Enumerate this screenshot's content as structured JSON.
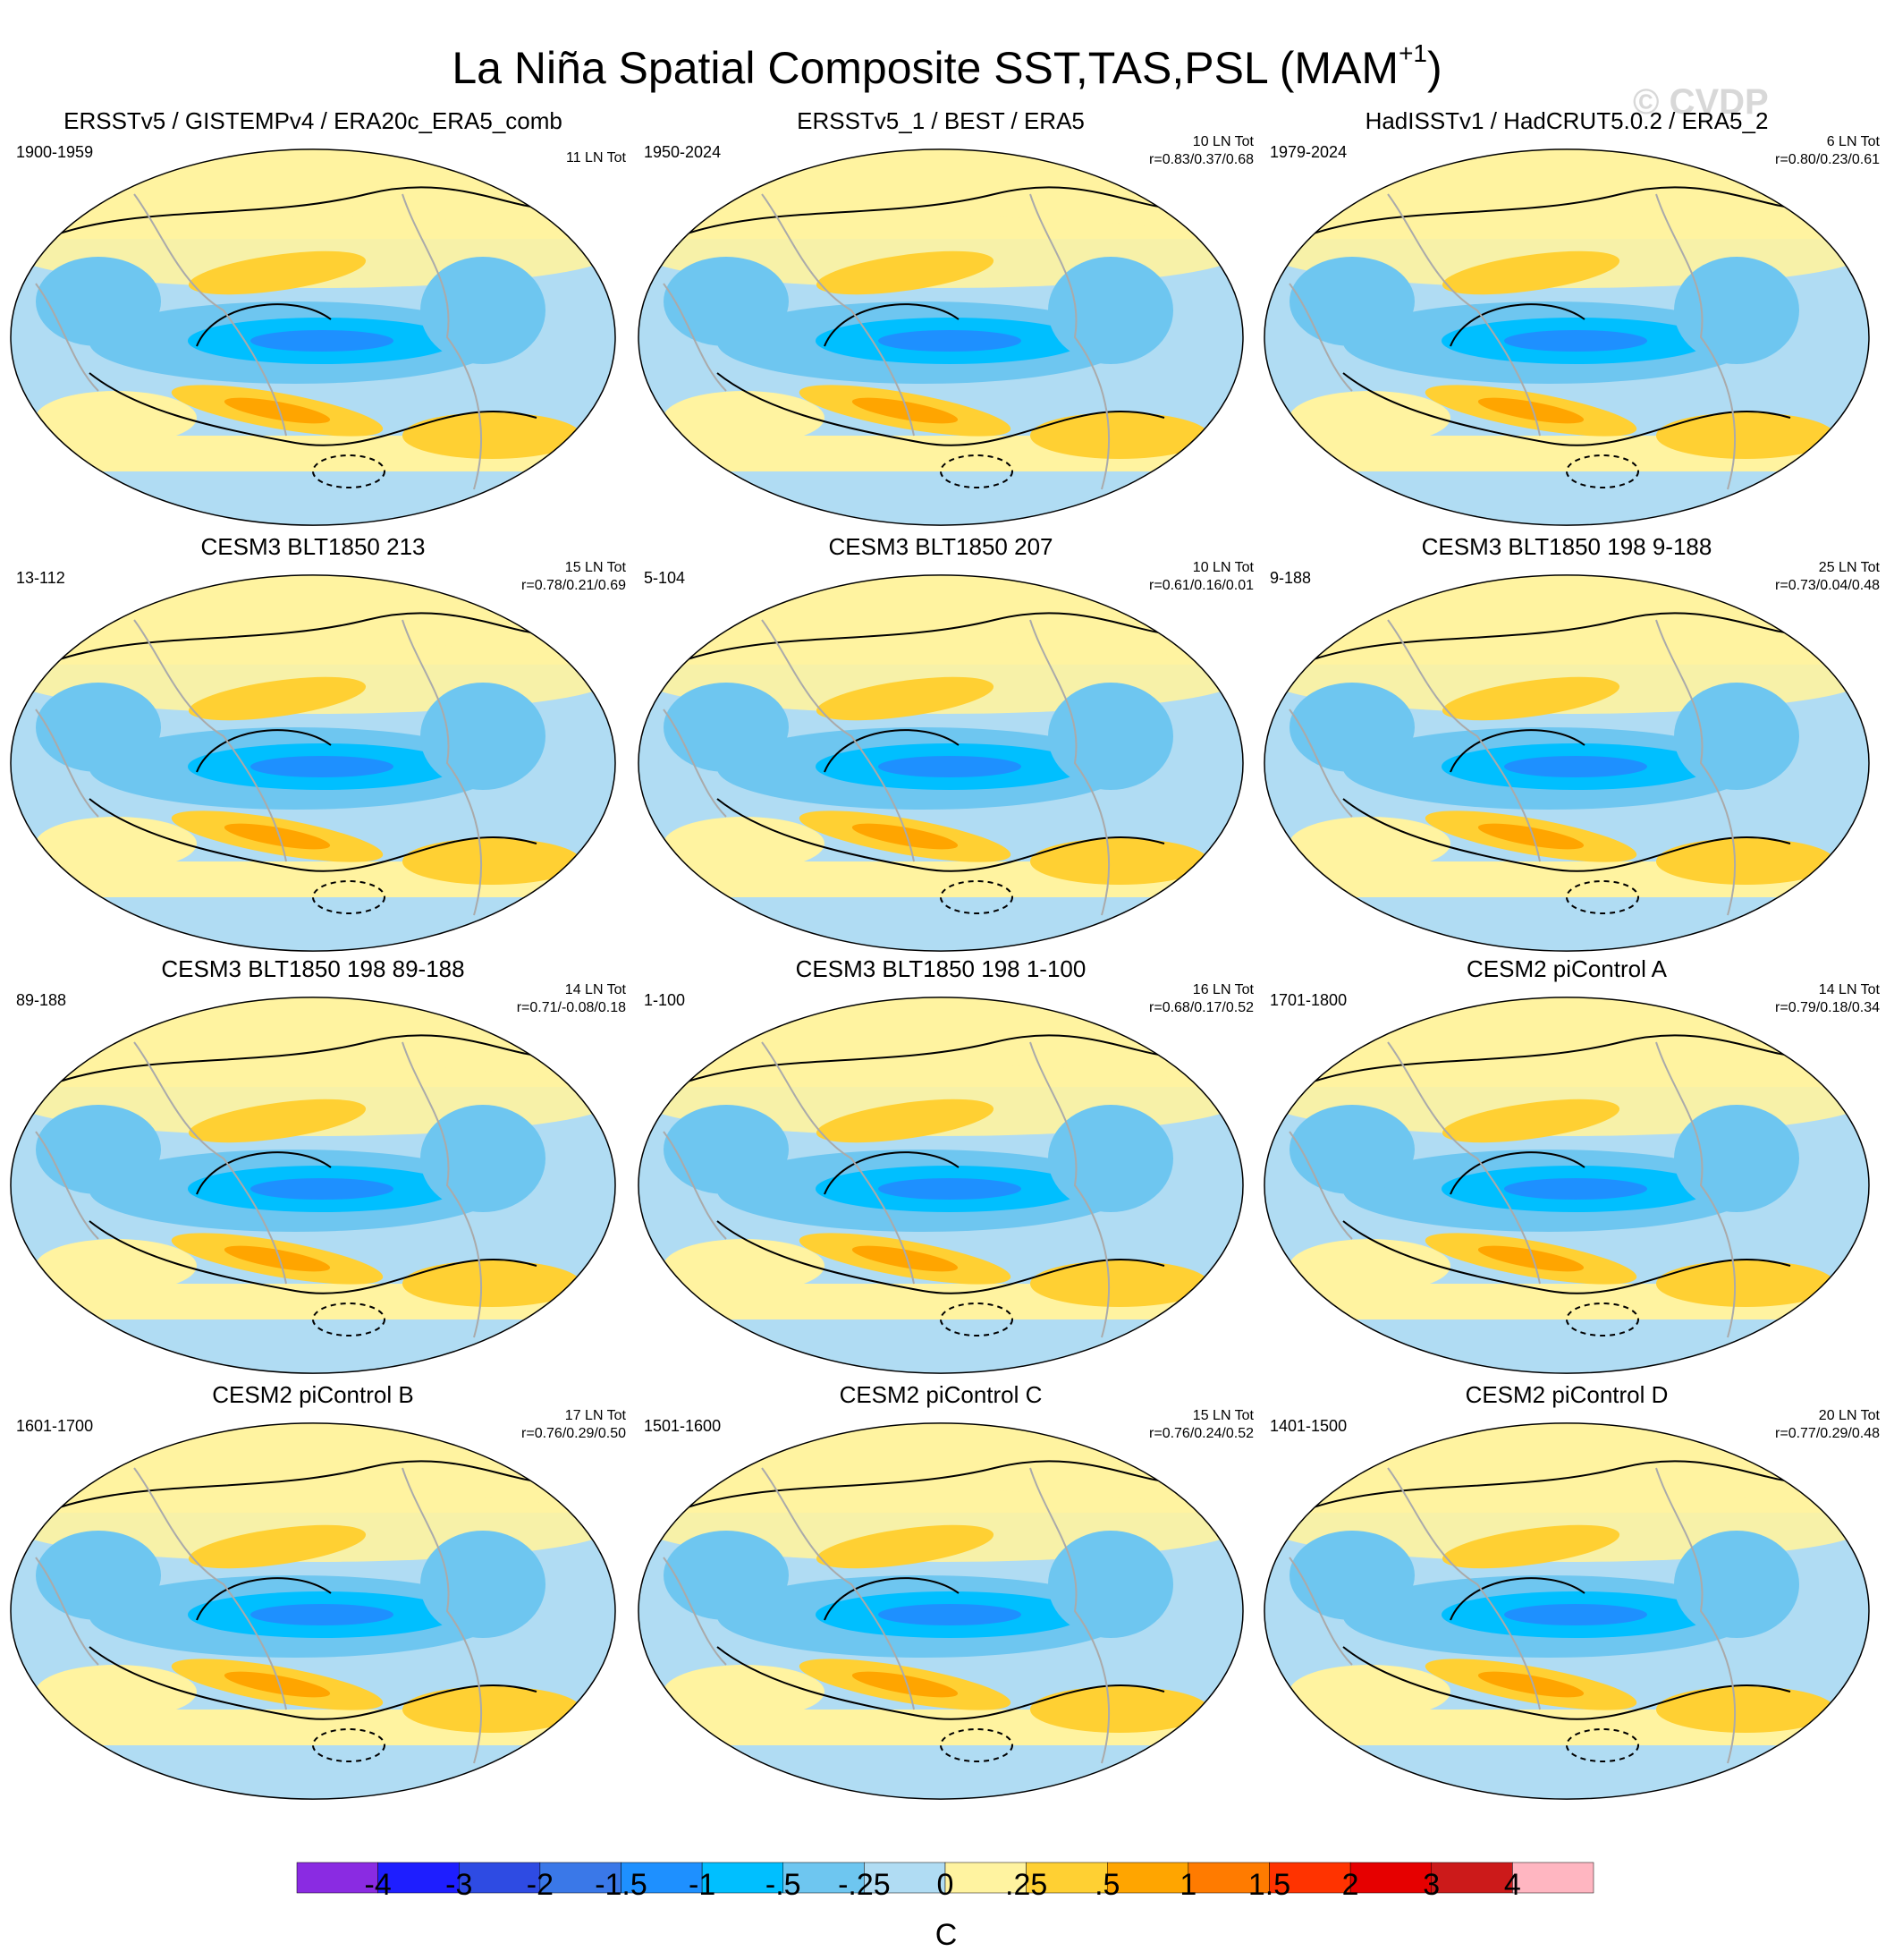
{
  "title": "La Niña Spatial Composite SST,TAS,PSL (MAM",
  "title_superscript": "+1",
  "title_close": ")",
  "watermark": "© CVDP",
  "colors": {
    "ocean_base": "#ffffff",
    "land_outline": "#aaaaaa",
    "contour": "#000000"
  },
  "panels": [
    {
      "title": "ERSSTv5 / GISTEMPv4 / ERA20c_ERA5_comb",
      "years": "1900-1959",
      "count": "11 LN Tot",
      "corr": ""
    },
    {
      "title": "ERSSTv5_1 / BEST / ERA5",
      "years": "1950-2024",
      "count": "10 LN Tot",
      "corr": "r=0.83/0.37/0.68"
    },
    {
      "title": "HadISSTv1 / HadCRUT5.0.2 / ERA5_2",
      "years": "1979-2024",
      "count": "6 LN Tot",
      "corr": "r=0.80/0.23/0.61"
    },
    {
      "title": "CESM3 BLT1850 213",
      "years": "13-112",
      "count": "15 LN Tot",
      "corr": "r=0.78/0.21/0.69"
    },
    {
      "title": "CESM3 BLT1850 207",
      "years": "5-104",
      "count": "10 LN Tot",
      "corr": "r=0.61/0.16/0.01"
    },
    {
      "title": "CESM3 BLT1850 198 9-188",
      "years": "9-188",
      "count": "25 LN Tot",
      "corr": "r=0.73/0.04/0.48"
    },
    {
      "title": "CESM3 BLT1850 198 89-188",
      "years": "89-188",
      "count": "14 LN Tot",
      "corr": "r=0.71/-0.08/0.18"
    },
    {
      "title": "CESM3 BLT1850 198 1-100",
      "years": "1-100",
      "count": "16 LN Tot",
      "corr": "r=0.68/0.17/0.52"
    },
    {
      "title": "CESM2 piControl A",
      "years": "1701-1800",
      "count": "14 LN Tot",
      "corr": "r=0.79/0.18/0.34"
    },
    {
      "title": "CESM2 piControl B",
      "years": "1601-1700",
      "count": "17 LN Tot",
      "corr": "r=0.76/0.29/0.50"
    },
    {
      "title": "CESM2 piControl C",
      "years": "1501-1600",
      "count": "15 LN Tot",
      "corr": "r=0.76/0.24/0.52"
    },
    {
      "title": "CESM2 piControl D",
      "years": "1401-1500",
      "count": "20 LN Tot",
      "corr": "r=0.77/0.29/0.48"
    }
  ],
  "colorbar": {
    "unit": "C",
    "labels": [
      "-4",
      "-3",
      "-2",
      "-1.5",
      "-1",
      "-.5",
      "-.25",
      "0",
      ".25",
      ".5",
      "1",
      "1.5",
      "2",
      "3",
      "4"
    ],
    "colors": [
      "#8a2be2",
      "#1e1eff",
      "#2e4be3",
      "#3a78e8",
      "#1e90ff",
      "#00bfff",
      "#6ec6f0",
      "#b0dcf3",
      "#fff3a0",
      "#ffd033",
      "#ffa500",
      "#ff7b00",
      "#ff3300",
      "#e60000",
      "#cc1a1a",
      "#ffb6c1"
    ]
  }
}
